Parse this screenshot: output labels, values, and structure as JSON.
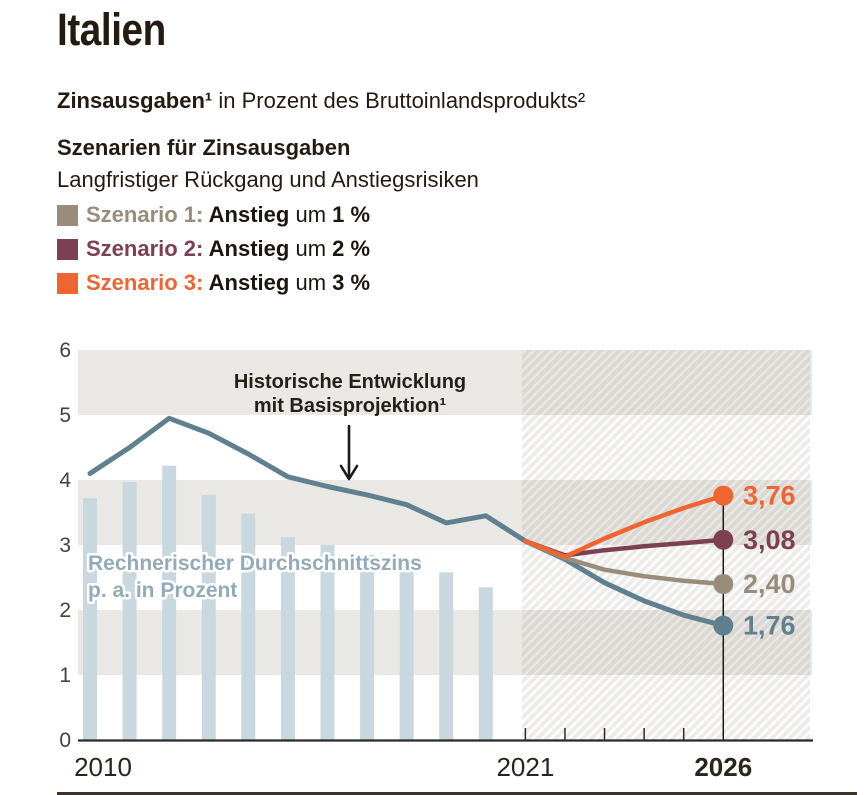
{
  "header": {
    "title": "Italien",
    "subtitle_bold": "Zinsausgaben¹",
    "subtitle_rest": " in Prozent des Bruttoinlandsprodukts²",
    "section_title": "Szenarien für Zinsausgaben",
    "section_sub": "Langfristiger Rückgang und Anstiegsrisiken",
    "legend": [
      {
        "label": "Szenario 1:",
        "word_bold": " Anstieg",
        "word_reg": " um ",
        "pct": "1 %",
        "color": "#9a8c7b"
      },
      {
        "label": "Szenario 2:",
        "word_bold": " Anstieg",
        "word_reg": " um ",
        "pct": "2 %",
        "color": "#7d4053"
      },
      {
        "label": "Szenario 3:",
        "word_bold": " Anstieg",
        "word_reg": " um ",
        "pct": "3 %",
        "color": "#ef6532"
      }
    ]
  },
  "chart_data": {
    "type": "bar+line",
    "title": "Italien – Zinsausgaben in Prozent des Bruttoinlandsprodukts",
    "ylim": [
      0,
      6
    ],
    "y_tick_labels": [
      "0",
      "1",
      "2",
      "3",
      "4",
      "5",
      "6"
    ],
    "x_labels": [
      {
        "text": "2010",
        "year": 2010,
        "bold": false
      },
      {
        "text": "2021",
        "year": 2021,
        "bold": false
      },
      {
        "text": "2026",
        "year": 2026,
        "bold": true
      }
    ],
    "minor_x_ticks_years": [
      2021,
      2022,
      2023,
      2024,
      2025
    ],
    "projection": {
      "start_year": 2021,
      "end_year": 2026
    },
    "colors": {
      "band": "#e9e8e5",
      "hatch_stripe": "rgba(120,112,100,0.13)",
      "axis": "#2a2a2a",
      "endpoint_line": "#1a1a1a"
    },
    "bars": {
      "name": "Rechnerischer Durchschnittszins p. a. in Prozent",
      "label_line1": "Rechnerischer Durchschnittszins",
      "label_line2": "p. a. in Prozent",
      "color": "#c9d8de",
      "label_color": "#93abb8",
      "years": [
        2010,
        2011,
        2012,
        2013,
        2014,
        2015,
        2016,
        2017,
        2018,
        2019,
        2020
      ],
      "values": [
        3.72,
        3.97,
        4.22,
        3.77,
        3.48,
        3.12,
        3.0,
        2.85,
        2.72,
        2.58,
        2.35
      ]
    },
    "baseline": {
      "name": "Historische Entwicklung mit Basisprojektion",
      "annotation_line1": "Historische Entwicklung",
      "annotation_line2": "mit Basisprojektion¹",
      "color": "#60808f",
      "years": [
        2010,
        2011,
        2012,
        2013,
        2014,
        2015,
        2016,
        2017,
        2018,
        2019,
        2020,
        2021,
        2022,
        2023,
        2024,
        2025,
        2026
      ],
      "values": [
        4.1,
        4.5,
        4.95,
        4.72,
        4.4,
        4.05,
        3.9,
        3.77,
        3.62,
        3.34,
        3.45,
        3.06,
        2.78,
        2.42,
        2.14,
        1.92,
        1.76
      ],
      "end_value": 1.76,
      "end_label": "1,76"
    },
    "scenarios": [
      {
        "name": "Szenario 1: Anstieg um 1 %",
        "color": "#9a8c7b",
        "years": [
          2021,
          2022,
          2023,
          2024,
          2025,
          2026
        ],
        "values": [
          3.06,
          2.8,
          2.62,
          2.52,
          2.45,
          2.4
        ],
        "end_label": "2,40"
      },
      {
        "name": "Szenario 2: Anstieg um 2 %",
        "color": "#7d4053",
        "years": [
          2021,
          2022,
          2023,
          2024,
          2025,
          2026
        ],
        "values": [
          3.06,
          2.84,
          2.92,
          2.98,
          3.03,
          3.08
        ],
        "end_label": "3,08"
      },
      {
        "name": "Szenario 3: Anstieg um 3 %",
        "color": "#ef6532",
        "years": [
          2021,
          2022,
          2023,
          2024,
          2025,
          2026
        ],
        "values": [
          3.06,
          2.82,
          3.1,
          3.35,
          3.57,
          3.76
        ],
        "end_label": "3,76"
      }
    ]
  }
}
